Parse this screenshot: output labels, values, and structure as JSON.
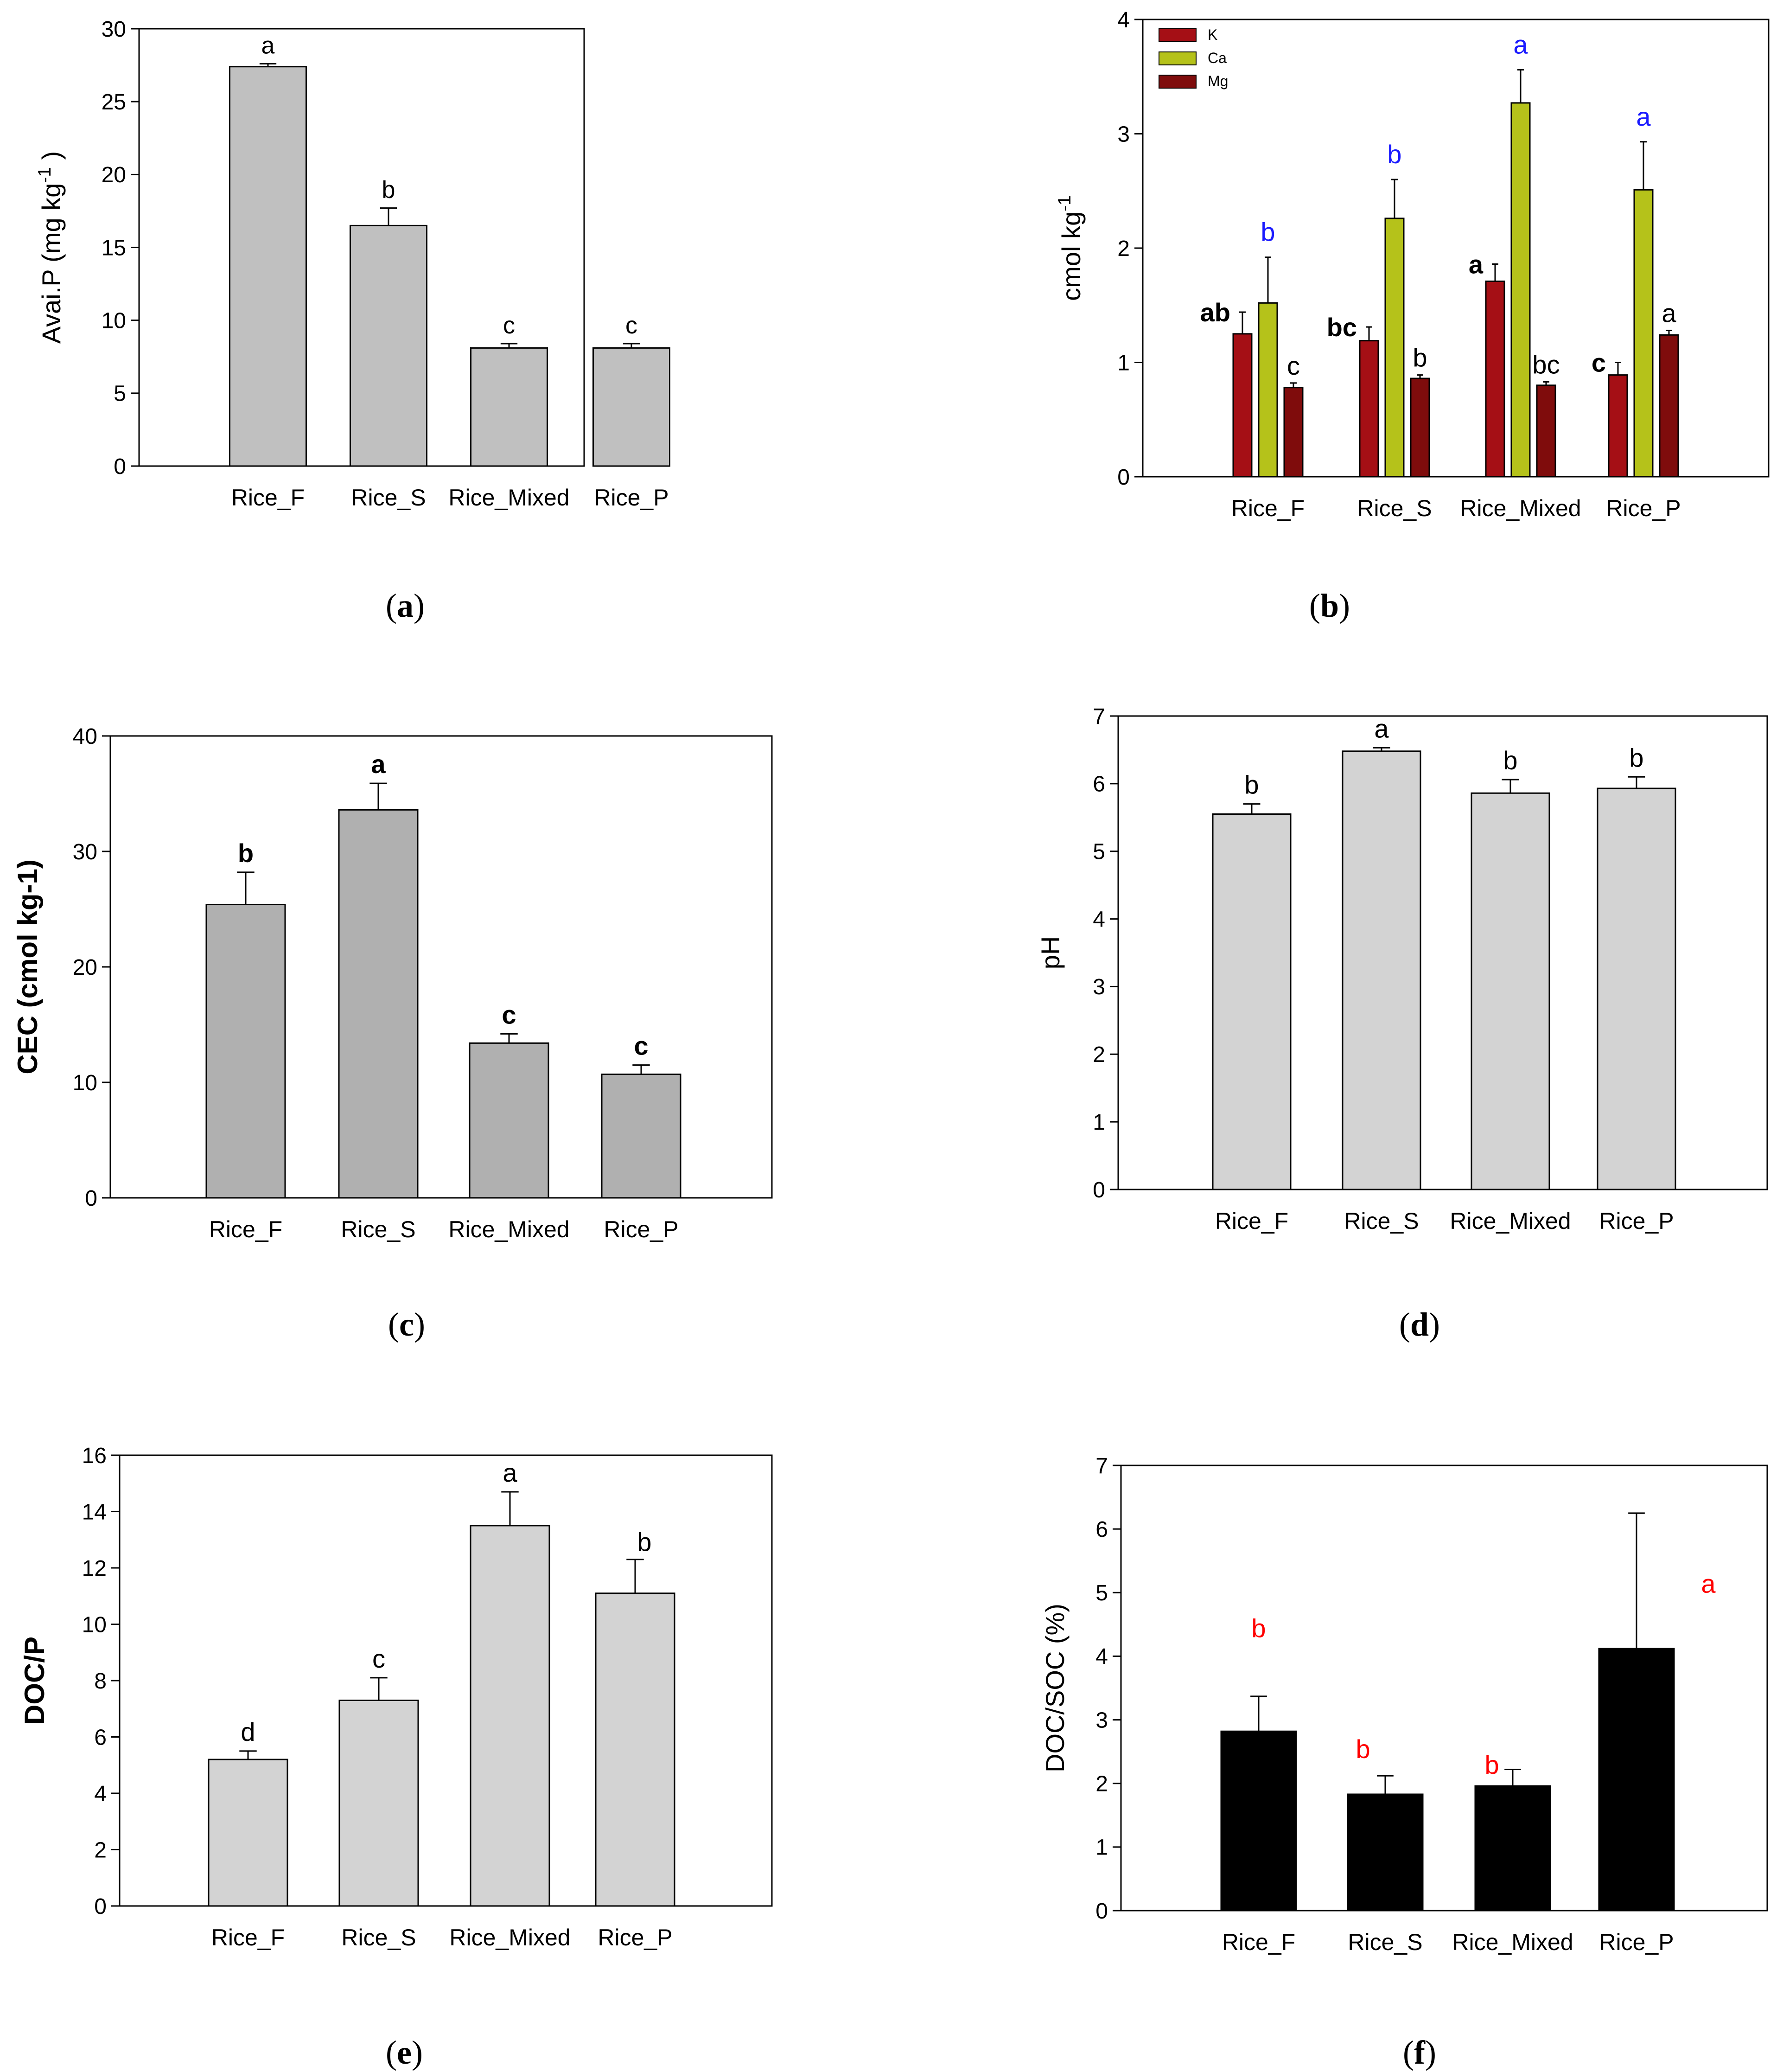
{
  "captions": {
    "a": "a",
    "b": "b",
    "c": "c",
    "d": "d",
    "e": "e",
    "f": "f"
  },
  "chart_data": [
    {
      "id": "a",
      "type": "bar",
      "title": "",
      "ylabel": "Avai.P (mg kg",
      "ylabel_sup": "-1",
      "ylabel_close": ")",
      "xlabel": "",
      "categories": [
        "Rice_F",
        "Rice_S",
        "Rice_Mixed",
        "Rice_P"
      ],
      "ylim": [
        0,
        30
      ],
      "yticks": [
        0,
        5,
        10,
        15,
        20,
        25,
        30
      ],
      "series": [
        {
          "name": "Avai.P",
          "color": "#c0c0c0",
          "values": [
            27.4,
            16.5,
            8.1,
            8.1
          ],
          "errors": [
            0.2,
            1.2,
            0.3,
            0.3
          ],
          "letters": [
            "a",
            "b",
            "c",
            "c"
          ],
          "letter_color": "#000000",
          "letter_bold": false
        }
      ]
    },
    {
      "id": "b",
      "type": "bar",
      "title": "",
      "ylabel": "cmol kg",
      "ylabel_sup": "-1",
      "ylabel_close": "",
      "xlabel": "",
      "categories": [
        "Rice_F",
        "Rice_S",
        "Rice_Mixed",
        "Rice_P"
      ],
      "ylim": [
        0,
        4
      ],
      "yticks": [
        0,
        1,
        2,
        3,
        4
      ],
      "legend": "top-left",
      "series": [
        {
          "name": "K",
          "color": "#a50f15",
          "values": [
            1.25,
            1.19,
            1.71,
            0.89
          ],
          "errors": [
            0.19,
            0.12,
            0.15,
            0.11
          ],
          "letters": [
            "ab",
            "bc",
            "a",
            "c"
          ],
          "letter_color": "#000000",
          "letter_bold": true
        },
        {
          "name": "Ca",
          "color": "#b5c21a",
          "values": [
            1.52,
            2.26,
            3.27,
            2.51
          ],
          "errors": [
            0.4,
            0.34,
            0.29,
            0.42
          ],
          "letters": [
            "b",
            "b",
            "a",
            "a"
          ],
          "letter_color": "#1a1aff",
          "letter_bold": false
        },
        {
          "name": "Mg",
          "color": "#7f0c0c",
          "values": [
            0.78,
            0.86,
            0.8,
            1.24
          ],
          "errors": [
            0.04,
            0.03,
            0.03,
            0.04
          ],
          "letters": [
            "c",
            "b",
            "bc",
            "a"
          ],
          "letter_color": "#000000",
          "letter_bold": false
        }
      ]
    },
    {
      "id": "c",
      "type": "bar",
      "title": "",
      "ylabel": "CEC (cmol kg-1)",
      "ylabel_sup": "",
      "ylabel_close": "",
      "xlabel": "",
      "categories": [
        "Rice_F",
        "Rice_S",
        "Rice_Mixed",
        "Rice_P"
      ],
      "ylim": [
        0,
        40
      ],
      "yticks": [
        0,
        10,
        20,
        30,
        40
      ],
      "series": [
        {
          "name": "CEC",
          "color": "#b0b0b0",
          "values": [
            25.4,
            33.6,
            13.4,
            10.7
          ],
          "errors": [
            2.8,
            2.3,
            0.8,
            0.8
          ],
          "letters": [
            "b",
            "a",
            "c",
            "c"
          ],
          "letter_color": "#000000",
          "letter_bold": true
        }
      ]
    },
    {
      "id": "d",
      "type": "bar",
      "title": "",
      "ylabel": "pH",
      "ylabel_sup": "",
      "ylabel_close": "",
      "xlabel": "",
      "categories": [
        "Rice_F",
        "Rice_S",
        "Rice_Mixed",
        "Rice_P"
      ],
      "ylim": [
        0,
        7
      ],
      "yticks": [
        0,
        1,
        2,
        3,
        4,
        5,
        6,
        7
      ],
      "series": [
        {
          "name": "pH",
          "color": "#d3d3d3",
          "values": [
            5.55,
            6.48,
            5.86,
            5.93
          ],
          "errors": [
            0.15,
            0.05,
            0.2,
            0.17
          ],
          "letters": [
            "b",
            "a",
            "b",
            "b"
          ],
          "letter_color": "#000000",
          "letter_bold": false
        }
      ]
    },
    {
      "id": "e",
      "type": "bar",
      "title": "",
      "ylabel": "DOC/P",
      "ylabel_sup": "",
      "ylabel_close": "",
      "xlabel": "",
      "categories": [
        "Rice_F",
        "Rice_S",
        "Rice_Mixed",
        "Rice_P"
      ],
      "ylim": [
        0,
        16
      ],
      "yticks": [
        0,
        2,
        4,
        6,
        8,
        10,
        12,
        14,
        16
      ],
      "series": [
        {
          "name": "DOC/P",
          "color": "#d3d3d3",
          "values": [
            5.2,
            7.3,
            13.5,
            11.1
          ],
          "errors": [
            0.3,
            0.8,
            1.2,
            1.2
          ],
          "letters": [
            "d",
            "c",
            "a",
            "b"
          ],
          "letter_color": "#000000",
          "letter_bold": false
        }
      ]
    },
    {
      "id": "f",
      "type": "bar",
      "title": "",
      "ylabel": "DOC/SOC (%)",
      "ylabel_sup": "",
      "ylabel_close": "",
      "xlabel": "",
      "categories": [
        "Rice_F",
        "Rice_S",
        "Rice_Mixed",
        "Rice_P"
      ],
      "ylim": [
        0,
        7
      ],
      "yticks": [
        0,
        1,
        2,
        3,
        4,
        5,
        6,
        7
      ],
      "series": [
        {
          "name": "DOC/SOC",
          "color": "#000000",
          "values": [
            2.82,
            1.83,
            1.96,
            4.12
          ],
          "errors": [
            0.55,
            0.29,
            0.26,
            2.13
          ],
          "letters": [
            "b",
            "b",
            "b",
            "a"
          ],
          "letter_color": "#ff0000",
          "letter_bold": false
        }
      ]
    }
  ]
}
